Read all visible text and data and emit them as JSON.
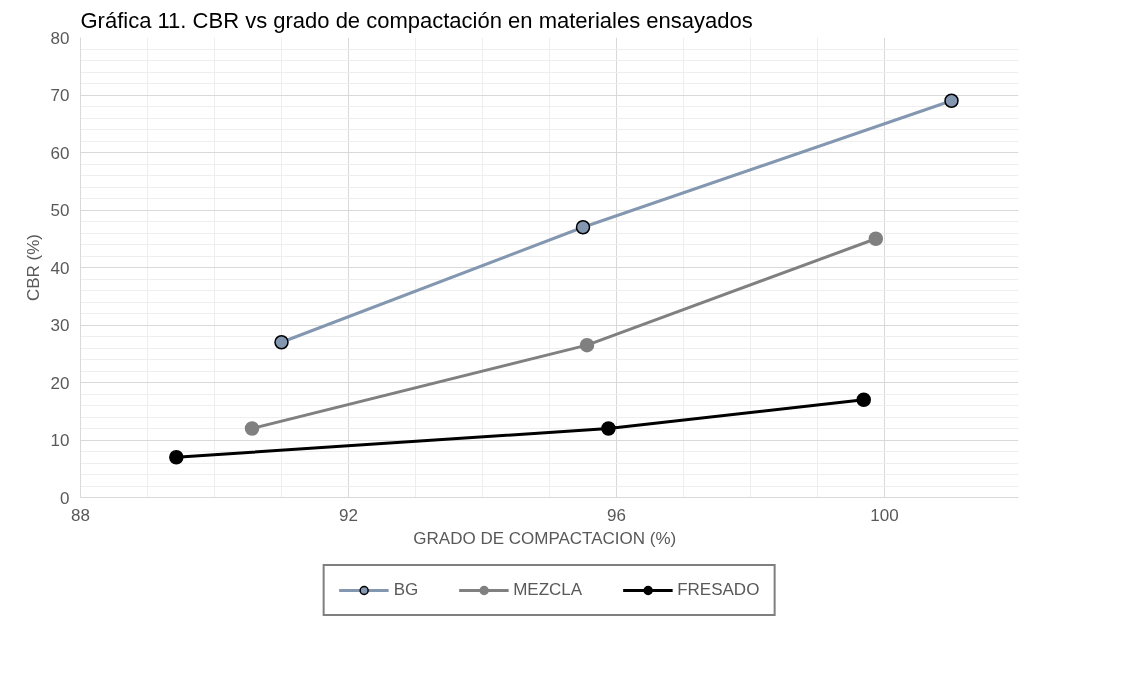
{
  "chart_data": {
    "type": "line",
    "title": "Gráfica 11. CBR vs grado de compactación en materiales ensayados",
    "xlabel": "GRADO DE COMPACTACION   (%)",
    "ylabel": "CBR (%)",
    "xlim": [
      88,
      102
    ],
    "xticks": [
      88,
      92,
      96,
      100
    ],
    "ylim": [
      0,
      80
    ],
    "yticks": [
      0,
      10,
      20,
      30,
      40,
      50,
      60,
      70,
      80
    ],
    "grid": true,
    "legend": "bottom",
    "marker": "circle",
    "line_style": "solid",
    "series": [
      {
        "name": "BG",
        "color": "#8497b0",
        "x": [
          91.0,
          95.5,
          101.0
        ],
        "values": [
          27,
          47,
          69
        ]
      },
      {
        "name": "MEZCLA",
        "color": "#808080",
        "x": [
          90.56,
          95.56,
          99.87
        ],
        "values": [
          12,
          26.5,
          45
        ]
      },
      {
        "name": "FRESADO",
        "color": "#000000",
        "x": [
          89.43,
          95.88,
          99.69
        ],
        "values": [
          7,
          12,
          17
        ]
      }
    ]
  }
}
